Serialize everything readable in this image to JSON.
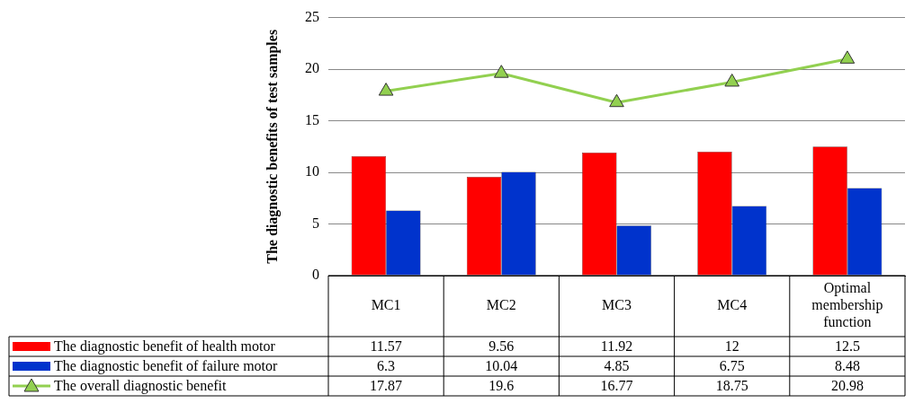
{
  "chart_data": {
    "type": "bar",
    "ylabel": "The diagnostic benefits of test samples",
    "categories": [
      "MC1",
      "MC2",
      "MC3",
      "MC4",
      "Optimal membership function"
    ],
    "series": [
      {
        "name": "The diagnostic benefit of health motor",
        "color": "#ff0000",
        "values": [
          11.57,
          9.56,
          11.92,
          12,
          12.5
        ]
      },
      {
        "name": "The diagnostic benefit of failure motor",
        "color": "#0033cc",
        "values": [
          6.3,
          10.04,
          4.85,
          6.75,
          8.48
        ]
      },
      {
        "name": "The overall diagnostic benefit",
        "type": "line",
        "color": "#92d050",
        "values": [
          17.87,
          19.6,
          16.77,
          18.75,
          20.98
        ]
      }
    ],
    "ylim": [
      0,
      25
    ],
    "yticks": [
      0,
      5,
      10,
      15,
      20,
      25
    ],
    "grid": "y",
    "legend": "bottom",
    "marker": "triangle",
    "line_style": "solid",
    "data_labels": true
  }
}
